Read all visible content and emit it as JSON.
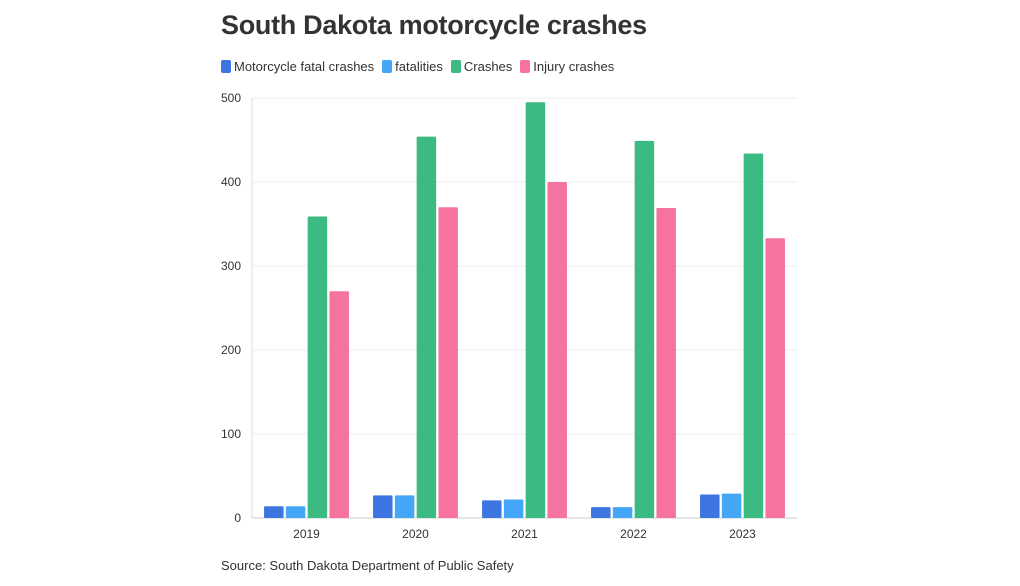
{
  "chart_data": {
    "type": "bar",
    "title": "South Dakota motorcycle crashes",
    "categories": [
      "2019",
      "2020",
      "2021",
      "2022",
      "2023"
    ],
    "series": [
      {
        "name": "Motorcycle fatal crashes",
        "color": "#3d76e0",
        "values": [
          14,
          27,
          21,
          13,
          28
        ]
      },
      {
        "name": "fatalities",
        "color": "#44a6f7",
        "values": [
          14,
          27,
          22,
          13,
          29
        ]
      },
      {
        "name": "Crashes",
        "color": "#3bba82",
        "values": [
          359,
          454,
          495,
          449,
          434
        ]
      },
      {
        "name": "Injury crashes",
        "color": "#f5739e",
        "values": [
          270,
          370,
          400,
          369,
          333
        ]
      }
    ],
    "yticks": [
      0,
      100,
      200,
      300,
      400,
      500
    ],
    "ylim": [
      0,
      500
    ],
    "xlabel": "",
    "ylabel": "",
    "grid": true,
    "legend_position": "top-left"
  },
  "source": "Source: South Dakota Department of Public Safety"
}
